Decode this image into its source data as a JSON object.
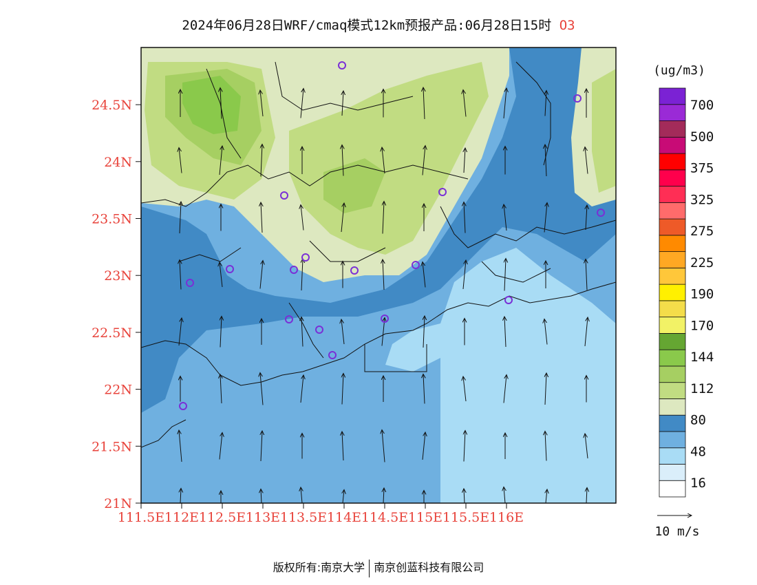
{
  "title": {
    "main": "2024年06月28日WRF/cmaq模式12km预报产品:06月28日15时",
    "species": "O3"
  },
  "colors": {
    "axis_label": "#e8433b",
    "title_species": "#e8433b",
    "station_marker": "#7a2fd6"
  },
  "map": {
    "axes": {
      "lon_ticks": [
        "111.5E",
        "112E",
        "112.5E",
        "113E",
        "113.5E",
        "114E",
        "114.5E",
        "115E",
        "115.5E",
        "116E"
      ],
      "lat_ticks": [
        "21N",
        "21.5N",
        "22N",
        "22.5N",
        "23N",
        "23.5N",
        "24N",
        "24.5N"
      ]
    }
  },
  "colorbar": {
    "unit": "(ug/m3)",
    "labels": [
      "700",
      "500",
      "375",
      "325",
      "275",
      "225",
      "190",
      "170",
      "144",
      "112",
      "80",
      "48",
      "16"
    ],
    "colors": [
      "#ffffff",
      "#daeefa",
      "#a9dcf5",
      "#6fb0e0",
      "#418ac5",
      "#dde8c0",
      "#c1dc82",
      "#a6cf62",
      "#8ac94b",
      "#65a632",
      "#f2f266",
      "#f4dd4a",
      "#fff000",
      "#ffc73a",
      "#ffa823",
      "#ff8a00",
      "#ee5a28",
      "#ff6b6b",
      "#ff2e55",
      "#ff004c",
      "#ff0000",
      "#c80b76",
      "#a32b5a",
      "#9a2ad6",
      "#7b22d4"
    ]
  },
  "wind_legend": {
    "label": "10 m/s"
  },
  "copyright": {
    "owner": "版权所有:南京大学",
    "partner": "南京创蓝科技有限公司"
  }
}
